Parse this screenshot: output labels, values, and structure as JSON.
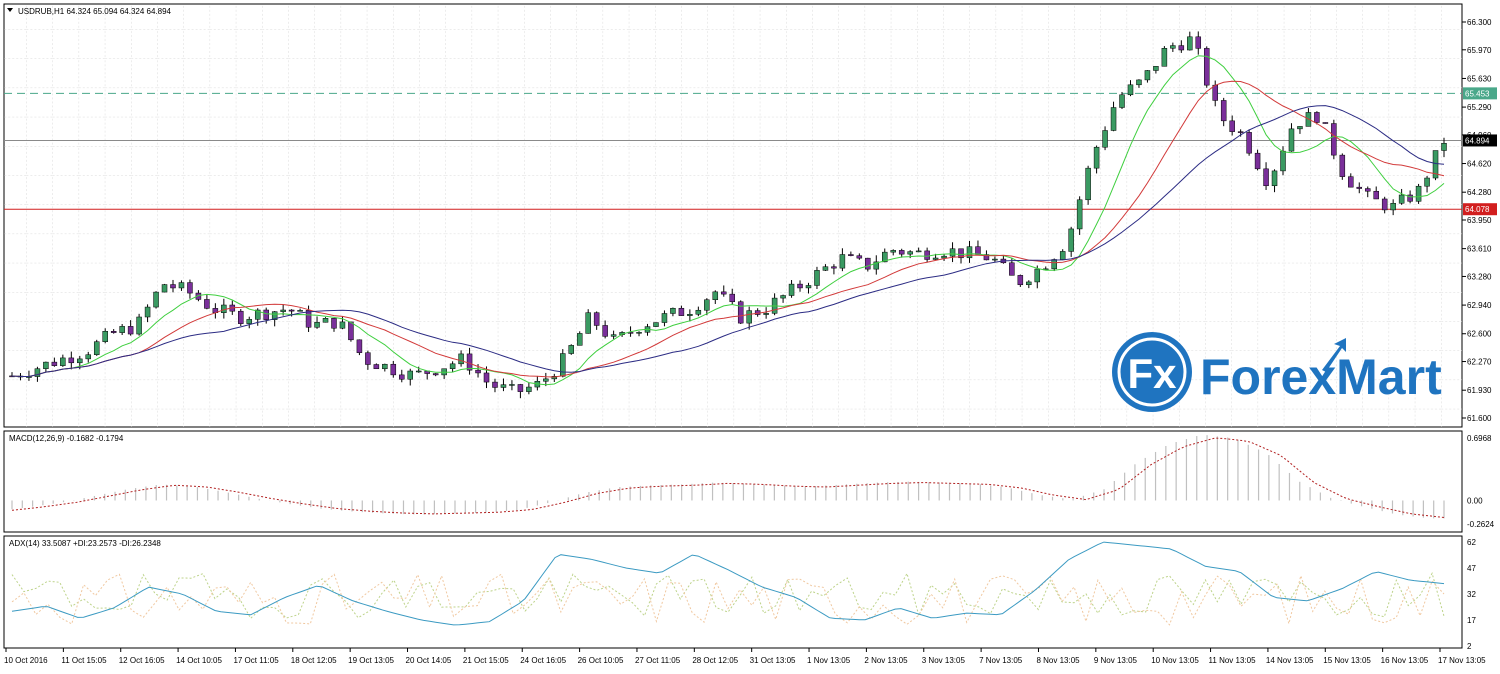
{
  "header": {
    "symbol_line": "USDRUB,H1  64.324 65.094 64.324 64.894",
    "macd_label": "MACD(12,26,9) -0.1682 -0.1794",
    "adx_label": "ADX(14) 33.5087 +DI:23.2573 -DI:26.2348"
  },
  "watermark": {
    "badge": "Fx",
    "text": "ForexMart"
  },
  "colors": {
    "up_candle": "#3a9a62",
    "down_candle": "#7a2f9a",
    "ma_fast": "#3fcf3f",
    "ma_mid": "#d23a3a",
    "ma_slow": "#2c2c84",
    "support_line": "#d21e1e",
    "resistance_line": "#4aa88a",
    "macd_hist": "#c0c0c0",
    "macd_signal": "#b22222",
    "adx": "#3b9ac2",
    "plus_di": "#bdd38a",
    "minus_di": "#f0c8a0",
    "logo_blue": "#1f74c0"
  },
  "chart_data": [
    {
      "type": "candlestick",
      "title": "USDRUB,H1",
      "ylim": [
        61.6,
        66.3
      ],
      "y_ticks": [
        "66.300",
        "65.970",
        "65.630",
        "65.290",
        "64.960",
        "64.620",
        "64.280",
        "63.950",
        "63.610",
        "63.280",
        "62.940",
        "62.600",
        "62.270",
        "61.930",
        "61.600"
      ],
      "x_ticks": [
        "10 Oct 2016",
        "11 Oct 15:05",
        "12 Oct 16:05",
        "14 Oct 10:05",
        "17 Oct 11:05",
        "18 Oct 12:05",
        "19 Oct 13:05",
        "20 Oct 14:05",
        "21 Oct 15:05",
        "24 Oct 16:05",
        "26 Oct 10:05",
        "27 Oct 11:05",
        "28 Oct 12:05",
        "31 Oct 13:05",
        "1 Nov 13:05",
        "2 Nov 13:05",
        "3 Nov 13:05",
        "7 Nov 13:05",
        "8 Nov 13:05",
        "9 Nov 13:05",
        "10 Nov 13:05",
        "11 Nov 13:05",
        "14 Nov 13:05",
        "15 Nov 13:05",
        "16 Nov 13:05",
        "17 Nov 13:05"
      ],
      "price_levels": [
        {
          "name": "current",
          "value": 64.894,
          "label": "64.894"
        },
        {
          "name": "resistance",
          "value": 65.453,
          "label": "65.453"
        },
        {
          "name": "support",
          "value": 64.078,
          "label": "64.078"
        }
      ],
      "close_path": [
        62.1,
        62.2,
        62.3,
        62.4,
        62.6,
        62.7,
        63.2,
        63.1,
        62.9,
        62.8,
        62.85,
        62.9,
        62.7,
        62.75,
        62.3,
        62.2,
        62.1,
        62.2,
        62.3,
        62.0,
        61.9,
        62.0,
        62.3,
        62.8,
        62.5,
        62.7,
        62.8,
        62.9,
        63.1,
        62.8,
        62.9,
        63.1,
        63.3,
        63.5,
        63.4,
        63.6,
        63.55,
        63.6,
        63.55,
        63.5,
        63.2,
        63.4,
        63.7,
        64.7,
        65.4,
        65.6,
        66.0,
        66.1,
        65.2,
        64.95,
        64.4,
        65.1,
        65.2,
        64.5,
        64.2,
        64.1,
        64.3,
        64.894
      ]
    },
    {
      "type": "macd",
      "title": "MACD(12,26,9)",
      "y_ticks": [
        "0.6968",
        "0.00",
        "-0.2624"
      ],
      "ylim": [
        -0.2624,
        0.6968
      ],
      "signal_path": [
        -0.11,
        -0.07,
        -0.02,
        0.05,
        0.12,
        0.17,
        0.15,
        0.09,
        0.02,
        -0.04,
        -0.09,
        -0.12,
        -0.14,
        -0.15,
        -0.14,
        -0.13,
        -0.1,
        -0.02,
        0.08,
        0.14,
        0.16,
        0.17,
        0.19,
        0.18,
        0.16,
        0.15,
        0.17,
        0.19,
        0.2,
        0.19,
        0.18,
        0.14,
        0.06,
        0.01,
        0.12,
        0.4,
        0.6,
        0.7,
        0.66,
        0.5,
        0.2,
        0.02,
        -0.07,
        -0.15,
        -0.19
      ]
    },
    {
      "type": "adx",
      "title": "ADX(14)",
      "y_ticks": [
        "62",
        "47",
        "32",
        "17",
        "2"
      ],
      "ylim": [
        2,
        62
      ],
      "adx_path": [
        22,
        25,
        18,
        24,
        36,
        32,
        22,
        20,
        30,
        37,
        28,
        22,
        17,
        14,
        16,
        28,
        55,
        52,
        47,
        44,
        55,
        46,
        36,
        30,
        18,
        17,
        24,
        18,
        21,
        20,
        34,
        52,
        62,
        60,
        58,
        48,
        45,
        30,
        28,
        35,
        45,
        40,
        38
      ]
    }
  ]
}
